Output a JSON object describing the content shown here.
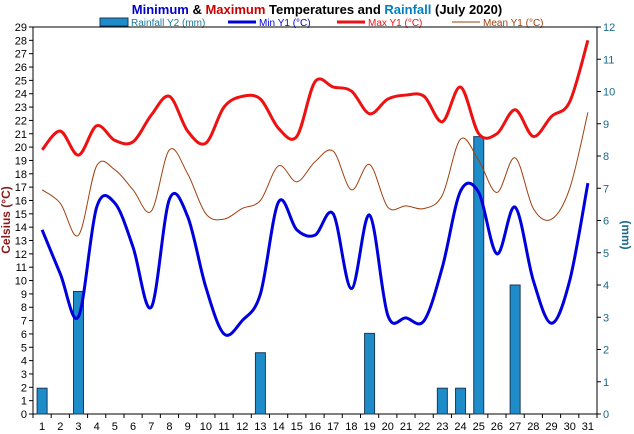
{
  "chart_data": {
    "type": "line",
    "title_parts": [
      {
        "text": "Minimum",
        "color": "#0000cc"
      },
      {
        "text": " & ",
        "color": "#000000"
      },
      {
        "text": "Maximum",
        "color": "#cc0000"
      },
      {
        "text": " Temperatures and ",
        "color": "#000000"
      },
      {
        "text": "Rainfall",
        "color": "#0080c0"
      },
      {
        "text": " (July 2020)",
        "color": "#000000"
      }
    ],
    "ylabel": "Celsius (°C)",
    "y2label": "(mm)",
    "ylim": [
      0,
      29
    ],
    "y2lim": [
      0,
      12
    ],
    "x": [
      1,
      2,
      3,
      4,
      5,
      6,
      7,
      8,
      9,
      10,
      11,
      12,
      13,
      14,
      15,
      16,
      17,
      18,
      19,
      20,
      21,
      22,
      23,
      24,
      25,
      26,
      27,
      28,
      29,
      30,
      31
    ],
    "x_ticks": [
      "1",
      "2",
      "3",
      "4",
      "5",
      "6",
      "7",
      "8",
      "9",
      "10",
      "11",
      "12",
      "13",
      "14",
      "15",
      "16",
      "17",
      "18",
      "19",
      "20",
      "21",
      "22",
      "23",
      "24",
      "25",
      "26",
      "27",
      "28",
      "29",
      "30",
      "31"
    ],
    "y_ticks": [
      "0",
      "1",
      "2",
      "3",
      "4",
      "5",
      "6",
      "7",
      "8",
      "9",
      "10",
      "11",
      "12",
      "13",
      "14",
      "15",
      "16",
      "17",
      "18",
      "19",
      "20",
      "21",
      "22",
      "23",
      "24",
      "25",
      "26",
      "27",
      "28",
      "29"
    ],
    "y2_ticks": [
      "0",
      "1",
      "2",
      "3",
      "4",
      "5",
      "6",
      "7",
      "8",
      "9",
      "10",
      "11",
      "12"
    ],
    "series": [
      {
        "name": "Rainfall Y2 (mm)",
        "kind": "bar",
        "axis": "y2",
        "color": "#1e8cc8",
        "values": [
          0.8,
          0,
          3.8,
          0,
          0,
          0,
          0,
          0,
          0,
          0,
          0,
          0,
          1.9,
          0,
          0,
          0,
          0,
          0,
          2.5,
          0,
          0,
          0,
          0.8,
          0.8,
          8.6,
          0,
          4.0,
          0,
          0,
          0,
          0
        ]
      },
      {
        "name": "Min Y1 (°C)",
        "kind": "line",
        "axis": "y",
        "color": "#0000dd",
        "values": [
          13.8,
          10.5,
          7.3,
          15.5,
          15.8,
          12.5,
          8.0,
          16.1,
          14.8,
          9.5,
          6.0,
          7.0,
          9.0,
          15.9,
          13.8,
          13.4,
          15.0,
          9.4,
          14.9,
          7.4,
          7.2,
          7.0,
          11.0,
          16.7,
          16.6,
          12.0,
          15.5,
          10.0,
          6.8,
          10.0,
          17.3
        ]
      },
      {
        "name": "Max Y1 (°C)",
        "kind": "line",
        "axis": "y",
        "color": "#ee1111",
        "values": [
          19.8,
          21.2,
          19.4,
          21.6,
          20.5,
          20.4,
          22.4,
          23.8,
          21.2,
          20.3,
          23.0,
          23.8,
          23.6,
          21.4,
          20.8,
          24.9,
          24.5,
          24.2,
          22.5,
          23.6,
          23.9,
          23.8,
          21.9,
          24.5,
          21.0,
          21.0,
          22.8,
          20.8,
          22.3,
          23.4,
          28.0
        ]
      },
      {
        "name": "Mean Y1 (°C)",
        "kind": "line",
        "axis": "y",
        "color": "#a0400e",
        "values": [
          16.8,
          15.8,
          13.4,
          18.6,
          18.3,
          16.8,
          15.2,
          19.8,
          18.0,
          15.0,
          14.6,
          15.4,
          16.0,
          18.6,
          17.4,
          18.9,
          19.7,
          16.8,
          18.7,
          15.5,
          15.6,
          15.4,
          16.4,
          20.6,
          19.0,
          16.6,
          19.2,
          15.4,
          14.6,
          16.9,
          22.6
        ]
      }
    ]
  }
}
